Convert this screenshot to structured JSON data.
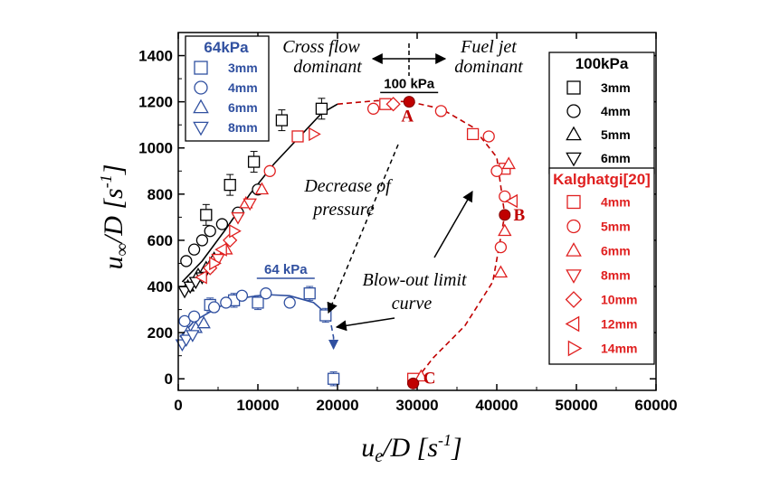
{
  "chart_data": {
    "type": "scatter",
    "title": "",
    "xlabel": "u_e/D [s^-1]",
    "ylabel": "u_∞/D [s^-1]",
    "xlim": [
      0,
      60000
    ],
    "ylim": [
      -50,
      1500
    ],
    "x_ticks": [
      0,
      10000,
      20000,
      30000,
      40000,
      50000,
      60000
    ],
    "y_ticks": [
      0,
      200,
      400,
      600,
      800,
      1000,
      1200,
      1400
    ],
    "x_tick_labels": [
      "0",
      "10000",
      "20000",
      "30000",
      "40000",
      "50000",
      "60000"
    ],
    "y_tick_labels": [
      "0",
      "200",
      "400",
      "600",
      "800",
      "1000",
      "1200",
      "1400"
    ],
    "colors": {
      "black": "#000000",
      "blue": "#3050a0",
      "red": "#e02020",
      "darkred": "#c00000"
    },
    "legends": [
      {
        "title": "64kPa",
        "color": "#3050a0",
        "position": "top-left",
        "items": [
          {
            "marker": "square",
            "label": "3mm"
          },
          {
            "marker": "circle",
            "label": "4mm"
          },
          {
            "marker": "triangle-up",
            "label": "6mm"
          },
          {
            "marker": "triangle-down",
            "label": "8mm"
          }
        ]
      },
      {
        "title": "100kPa",
        "color": "#000000",
        "position": "top-right",
        "items": [
          {
            "marker": "square",
            "label": "3mm"
          },
          {
            "marker": "circle",
            "label": "4mm"
          },
          {
            "marker": "triangle-up",
            "label": "5mm"
          },
          {
            "marker": "triangle-down",
            "label": "6mm"
          }
        ]
      },
      {
        "title": "Kalghatgi[20]",
        "color": "#e02020",
        "position": "right",
        "items": [
          {
            "marker": "square",
            "label": "4mm"
          },
          {
            "marker": "circle",
            "label": "5mm"
          },
          {
            "marker": "triangle-up",
            "label": "6mm"
          },
          {
            "marker": "triangle-down",
            "label": "8mm"
          },
          {
            "marker": "diamond",
            "label": "10mm"
          },
          {
            "marker": "triangle-left",
            "label": "12mm"
          },
          {
            "marker": "triangle-right",
            "label": "14mm"
          }
        ]
      }
    ],
    "series": [
      {
        "name": "100kPa 3mm",
        "marker": "square",
        "color": "#000000",
        "points": [
          [
            3500,
            710
          ],
          [
            6500,
            840
          ],
          [
            9500,
            940
          ],
          [
            13000,
            1120
          ],
          [
            18000,
            1170
          ]
        ],
        "error_y": 45
      },
      {
        "name": "100kPa 4mm",
        "marker": "circle",
        "color": "#000000",
        "points": [
          [
            1000,
            510
          ],
          [
            2000,
            560
          ],
          [
            3000,
            600
          ],
          [
            4000,
            640
          ],
          [
            5500,
            670
          ],
          [
            7500,
            720
          ],
          [
            10000,
            820
          ]
        ]
      },
      {
        "name": "100kPa 5mm",
        "marker": "triangle-up",
        "color": "#000000",
        "points": [
          [
            1200,
            400
          ],
          [
            2500,
            450
          ],
          [
            3500,
            480
          ],
          [
            4500,
            520
          ]
        ]
      },
      {
        "name": "100kPa 6mm",
        "marker": "triangle-down",
        "color": "#000000",
        "points": [
          [
            800,
            380
          ],
          [
            1500,
            400
          ],
          [
            2200,
            420
          ],
          [
            3000,
            440
          ]
        ]
      },
      {
        "name": "64kPa 3mm",
        "marker": "square",
        "color": "#3050a0",
        "points": [
          [
            4000,
            320
          ],
          [
            7000,
            340
          ],
          [
            10000,
            330
          ],
          [
            16500,
            370
          ],
          [
            18500,
            275
          ],
          [
            19500,
            0
          ]
        ],
        "error_y": 30
      },
      {
        "name": "64kPa 4mm",
        "marker": "circle",
        "color": "#3050a0",
        "points": [
          [
            800,
            250
          ],
          [
            2000,
            270
          ],
          [
            4500,
            310
          ],
          [
            6000,
            330
          ],
          [
            8000,
            360
          ],
          [
            11000,
            370
          ],
          [
            14000,
            330
          ]
        ]
      },
      {
        "name": "64kPa 6mm",
        "marker": "triangle-up",
        "color": "#3050a0",
        "points": [
          [
            1200,
            200
          ],
          [
            2200,
            220
          ],
          [
            3200,
            240
          ]
        ]
      },
      {
        "name": "64kPa 8mm",
        "marker": "triangle-down",
        "color": "#3050a0",
        "points": [
          [
            500,
            150
          ],
          [
            1000,
            170
          ],
          [
            1800,
            190
          ]
        ]
      },
      {
        "name": "Kalghatgi 4mm",
        "marker": "square",
        "color": "#e02020",
        "points": [
          [
            15000,
            1050
          ],
          [
            26000,
            1190
          ],
          [
            37000,
            1060
          ],
          [
            41000,
            910
          ],
          [
            29500,
            0
          ]
        ]
      },
      {
        "name": "Kalghatgi 5mm",
        "marker": "circle",
        "color": "#e02020",
        "points": [
          [
            11500,
            900
          ],
          [
            24500,
            1170
          ],
          [
            33000,
            1160
          ],
          [
            39000,
            1050
          ],
          [
            40000,
            900
          ],
          [
            41000,
            790
          ],
          [
            40500,
            570
          ]
        ]
      },
      {
        "name": "Kalghatgi 6mm",
        "marker": "triangle-up",
        "color": "#e02020",
        "points": [
          [
            6000,
            560
          ],
          [
            8500,
            760
          ],
          [
            10500,
            820
          ],
          [
            40500,
            460
          ],
          [
            41000,
            640
          ],
          [
            41500,
            930
          ],
          [
            30500,
            10
          ]
        ]
      },
      {
        "name": "Kalghatgi 8mm",
        "marker": "triangle-down",
        "color": "#e02020",
        "points": [
          [
            5000,
            520
          ],
          [
            7500,
            700
          ],
          [
            9000,
            760
          ]
        ]
      },
      {
        "name": "Kalghatgi 10mm",
        "marker": "diamond",
        "color": "#e02020",
        "points": [
          [
            4000,
            480
          ],
          [
            6500,
            600
          ],
          [
            27000,
            1190
          ]
        ]
      },
      {
        "name": "Kalghatgi 12mm",
        "marker": "triangle-left",
        "color": "#e02020",
        "points": [
          [
            3000,
            440
          ],
          [
            5500,
            560
          ],
          [
            42000,
            770
          ]
        ]
      },
      {
        "name": "Kalghatgi 14mm",
        "marker": "triangle-right",
        "color": "#e02020",
        "points": [
          [
            4500,
            500
          ],
          [
            7000,
            640
          ],
          [
            17000,
            1060
          ]
        ]
      }
    ],
    "curves": [
      {
        "name": "100kPa fit",
        "color": "#000000",
        "style": "solid",
        "points": [
          [
            500,
            420
          ],
          [
            3000,
            510
          ],
          [
            6000,
            650
          ],
          [
            9000,
            800
          ],
          [
            12000,
            930
          ],
          [
            15000,
            1040
          ],
          [
            18000,
            1150
          ],
          [
            20000,
            1190
          ]
        ]
      },
      {
        "name": "100kPa blow-out limit",
        "color": "#c00000",
        "style": "dashed",
        "points": [
          [
            20000,
            1190
          ],
          [
            25000,
            1205
          ],
          [
            29000,
            1200
          ],
          [
            33000,
            1170
          ],
          [
            37000,
            1090
          ],
          [
            40000,
            960
          ],
          [
            41000,
            710
          ],
          [
            39500,
            420
          ],
          [
            36000,
            230
          ],
          [
            32000,
            90
          ],
          [
            29500,
            -20
          ]
        ]
      },
      {
        "name": "64kPa fit",
        "color": "#3050a0",
        "style": "solid",
        "points": [
          [
            200,
            180
          ],
          [
            2000,
            250
          ],
          [
            5000,
            310
          ],
          [
            8000,
            350
          ],
          [
            11000,
            365
          ],
          [
            14000,
            360
          ],
          [
            17000,
            330
          ],
          [
            19000,
            270
          ]
        ]
      },
      {
        "name": "64kPa blow-out limit",
        "color": "#3050a0",
        "style": "dashed",
        "points": [
          [
            19000,
            270
          ],
          [
            19500,
            180
          ],
          [
            19500,
            130
          ]
        ]
      }
    ],
    "highlight_points": [
      {
        "label": "A",
        "x": 29000,
        "y": 1200
      },
      {
        "label": "B",
        "x": 41000,
        "y": 710
      },
      {
        "label": "C",
        "x": 29500,
        "y": -20
      }
    ],
    "group_labels": [
      {
        "text": "100 kPa",
        "x": 29000,
        "y": 1260,
        "color": "#000000"
      },
      {
        "text": "64 kPa",
        "x": 13500,
        "y": 455,
        "color": "#3050a0"
      }
    ],
    "annotations": {
      "cross_flow": [
        "Cross flow",
        "dominant"
      ],
      "fuel_jet": [
        "Fuel jet",
        "dominant"
      ],
      "decrease": [
        "Decrease of",
        "pressure"
      ],
      "blowout": [
        "Blow-out limit",
        "curve"
      ]
    }
  }
}
